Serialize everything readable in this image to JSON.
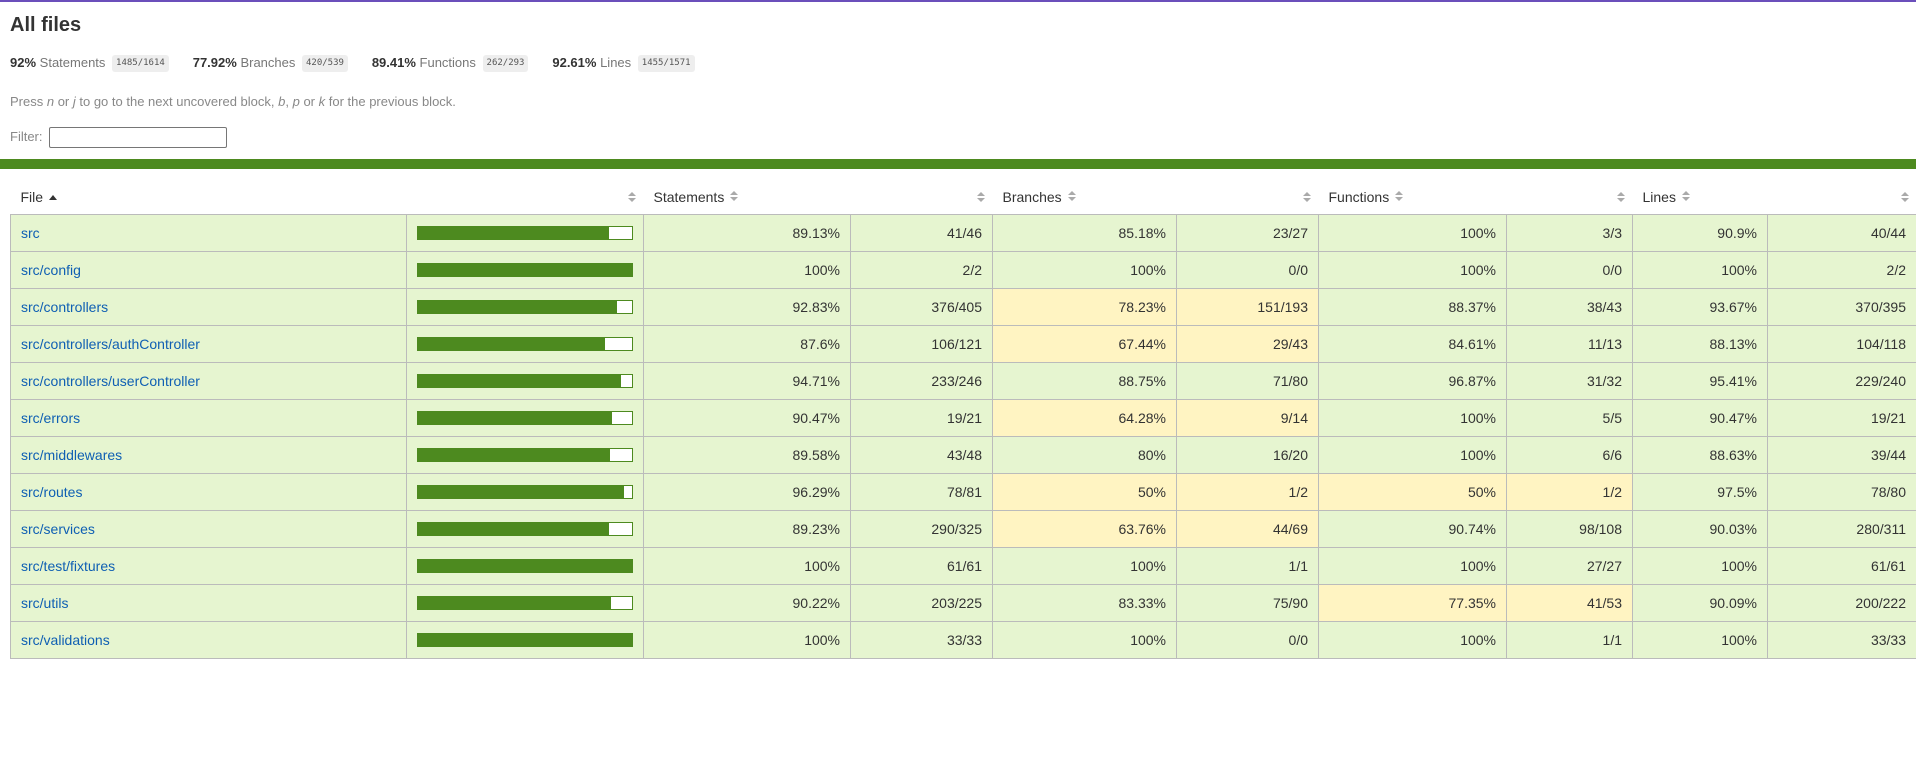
{
  "title": "All files",
  "summary": [
    {
      "pct": "92%",
      "label": "Statements",
      "fraction": "1485/1614"
    },
    {
      "pct": "77.92%",
      "label": "Branches",
      "fraction": "420/539"
    },
    {
      "pct": "89.41%",
      "label": "Functions",
      "fraction": "262/293"
    },
    {
      "pct": "92.61%",
      "label": "Lines",
      "fraction": "1455/1571"
    }
  ],
  "hint": {
    "p1": "Press ",
    "k1": "n",
    "p2": " or ",
    "k2": "j",
    "p3": " to go to the next uncovered block, ",
    "k3": "b",
    "p4": ", ",
    "k4": "p",
    "p5": " or ",
    "k5": "k",
    "p6": " for the previous block."
  },
  "filter": {
    "label": "Filter:",
    "value": ""
  },
  "headers": {
    "file": "File",
    "statements": "Statements",
    "branches": "Branches",
    "functions": "Functions",
    "lines": "Lines"
  },
  "colors": {
    "high": "#e6f5d0",
    "medium": "#fff4c2",
    "bar": "#4d8a1f",
    "link": "#0f5fb3"
  },
  "rows": [
    {
      "file": "src",
      "bar_fraction": 0.8913,
      "st_pct": "89.13%",
      "st_frac": "41/46",
      "br_pct": "85.18%",
      "br_frac": "23/27",
      "fn_pct": "100%",
      "fn_frac": "3/3",
      "ln_pct": "90.9%",
      "ln_frac": "40/44",
      "br_level": "high",
      "fn_level": "high"
    },
    {
      "file": "src/config",
      "bar_fraction": 1.0,
      "st_pct": "100%",
      "st_frac": "2/2",
      "br_pct": "100%",
      "br_frac": "0/0",
      "fn_pct": "100%",
      "fn_frac": "0/0",
      "ln_pct": "100%",
      "ln_frac": "2/2",
      "br_level": "high",
      "fn_level": "high"
    },
    {
      "file": "src/controllers",
      "bar_fraction": 0.9283,
      "st_pct": "92.83%",
      "st_frac": "376/405",
      "br_pct": "78.23%",
      "br_frac": "151/193",
      "fn_pct": "88.37%",
      "fn_frac": "38/43",
      "ln_pct": "93.67%",
      "ln_frac": "370/395",
      "br_level": "medium",
      "fn_level": "high"
    },
    {
      "file": "src/controllers/authController",
      "bar_fraction": 0.876,
      "st_pct": "87.6%",
      "st_frac": "106/121",
      "br_pct": "67.44%",
      "br_frac": "29/43",
      "fn_pct": "84.61%",
      "fn_frac": "11/13",
      "ln_pct": "88.13%",
      "ln_frac": "104/118",
      "br_level": "medium",
      "fn_level": "high"
    },
    {
      "file": "src/controllers/userController",
      "bar_fraction": 0.9471,
      "st_pct": "94.71%",
      "st_frac": "233/246",
      "br_pct": "88.75%",
      "br_frac": "71/80",
      "fn_pct": "96.87%",
      "fn_frac": "31/32",
      "ln_pct": "95.41%",
      "ln_frac": "229/240",
      "br_level": "high",
      "fn_level": "high"
    },
    {
      "file": "src/errors",
      "bar_fraction": 0.9047,
      "st_pct": "90.47%",
      "st_frac": "19/21",
      "br_pct": "64.28%",
      "br_frac": "9/14",
      "fn_pct": "100%",
      "fn_frac": "5/5",
      "ln_pct": "90.47%",
      "ln_frac": "19/21",
      "br_level": "medium",
      "fn_level": "high"
    },
    {
      "file": "src/middlewares",
      "bar_fraction": 0.8958,
      "st_pct": "89.58%",
      "st_frac": "43/48",
      "br_pct": "80%",
      "br_frac": "16/20",
      "fn_pct": "100%",
      "fn_frac": "6/6",
      "ln_pct": "88.63%",
      "ln_frac": "39/44",
      "br_level": "high",
      "fn_level": "high"
    },
    {
      "file": "src/routes",
      "bar_fraction": 0.9629,
      "st_pct": "96.29%",
      "st_frac": "78/81",
      "br_pct": "50%",
      "br_frac": "1/2",
      "fn_pct": "50%",
      "fn_frac": "1/2",
      "ln_pct": "97.5%",
      "ln_frac": "78/80",
      "br_level": "medium",
      "fn_level": "medium"
    },
    {
      "file": "src/services",
      "bar_fraction": 0.8923,
      "st_pct": "89.23%",
      "st_frac": "290/325",
      "br_pct": "63.76%",
      "br_frac": "44/69",
      "fn_pct": "90.74%",
      "fn_frac": "98/108",
      "ln_pct": "90.03%",
      "ln_frac": "280/311",
      "br_level": "medium",
      "fn_level": "high"
    },
    {
      "file": "src/test/fixtures",
      "bar_fraction": 1.0,
      "st_pct": "100%",
      "st_frac": "61/61",
      "br_pct": "100%",
      "br_frac": "1/1",
      "fn_pct": "100%",
      "fn_frac": "27/27",
      "ln_pct": "100%",
      "ln_frac": "61/61",
      "br_level": "high",
      "fn_level": "high"
    },
    {
      "file": "src/utils",
      "bar_fraction": 0.9022,
      "st_pct": "90.22%",
      "st_frac": "203/225",
      "br_pct": "83.33%",
      "br_frac": "75/90",
      "fn_pct": "77.35%",
      "fn_frac": "41/53",
      "ln_pct": "90.09%",
      "ln_frac": "200/222",
      "br_level": "high",
      "fn_level": "medium"
    },
    {
      "file": "src/validations",
      "bar_fraction": 1.0,
      "st_pct": "100%",
      "st_frac": "33/33",
      "br_pct": "100%",
      "br_frac": "0/0",
      "fn_pct": "100%",
      "fn_frac": "1/1",
      "ln_pct": "100%",
      "ln_frac": "33/33",
      "br_level": "high",
      "fn_level": "high"
    }
  ]
}
